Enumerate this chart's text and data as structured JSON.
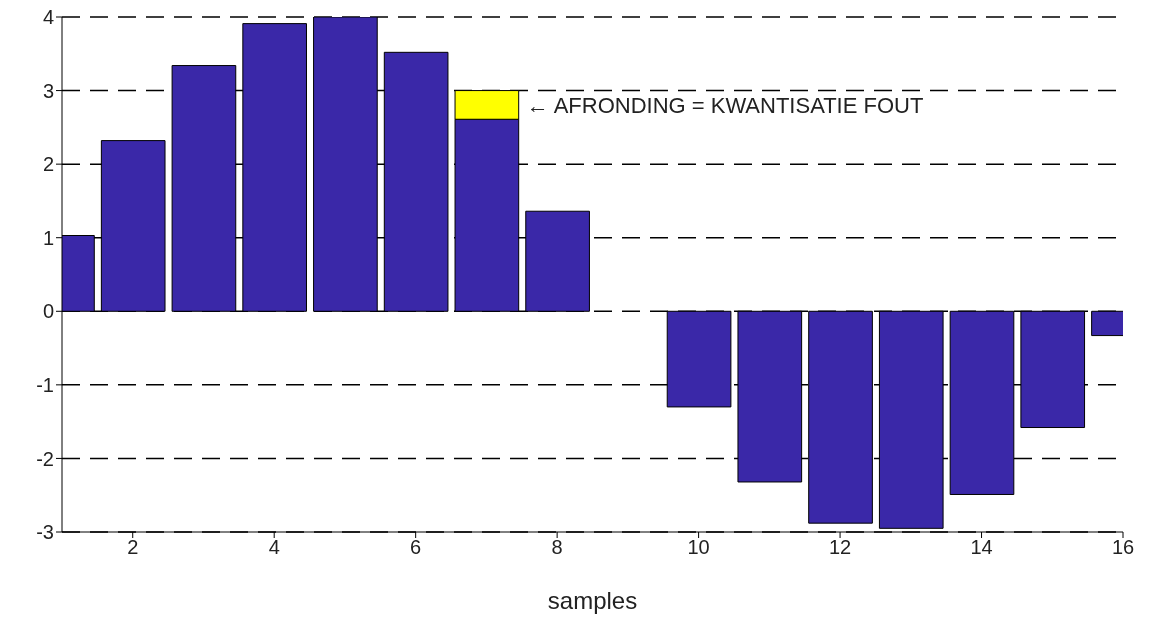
{
  "chart_data": {
    "type": "bar",
    "stacked": true,
    "xlabel": "samples",
    "x": [
      1,
      2,
      3,
      4,
      5,
      6,
      7,
      8,
      9,
      10,
      11,
      12,
      13,
      14,
      15,
      16
    ],
    "series": [
      {
        "color": "#3a28a8",
        "values": [
          1.03,
          2.32,
          3.34,
          3.91,
          4.0,
          3.52,
          2.61,
          1.36,
          0,
          -1.3,
          -2.32,
          -2.88,
          -2.95,
          -2.49,
          -1.58,
          -0.33
        ]
      },
      {
        "color": "#ffff00",
        "values": [
          null,
          null,
          null,
          null,
          null,
          null,
          0.39,
          null,
          null,
          null,
          null,
          null,
          null,
          null,
          null,
          null
        ]
      }
    ],
    "xlim": [
      1,
      16
    ],
    "xticks": [
      2,
      4,
      6,
      8,
      10,
      12,
      14,
      16
    ],
    "ylim": [
      -3,
      4
    ],
    "yticks": [
      -3,
      -2,
      -1,
      0,
      1,
      2,
      3,
      4
    ],
    "grid": "y",
    "legend": false,
    "annotations": [
      {
        "text": "← AFRONDING = KWANTISATIE FOUT",
        "x": 7.5,
        "y": 2.8
      }
    ]
  }
}
